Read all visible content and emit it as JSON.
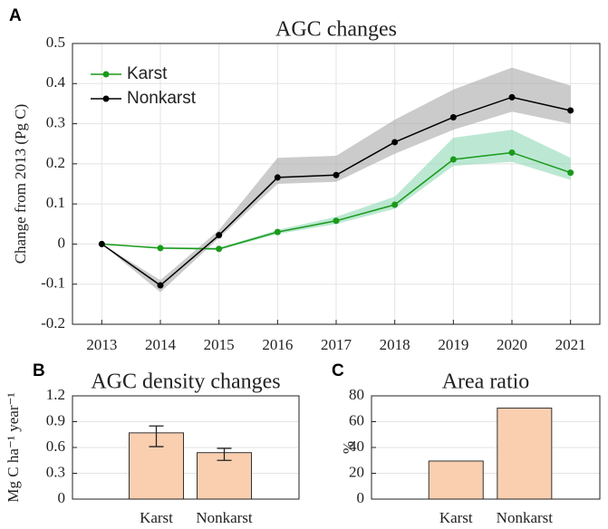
{
  "chart_data": [
    {
      "type": "line",
      "panel_label": "A",
      "title": "AGC changes",
      "ylabel": "Change from 2013 (Pg C)",
      "x": [
        2013,
        2014,
        2015,
        2016,
        2017,
        2018,
        2019,
        2020,
        2021
      ],
      "xlim": [
        2012.5,
        2021.5
      ],
      "xticks": [
        2013,
        2014,
        2015,
        2016,
        2017,
        2018,
        2019,
        2020,
        2021
      ],
      "ylim": [
        -0.2,
        0.5
      ],
      "yticks": [
        -0.2,
        -0.1,
        0,
        0.1,
        0.2,
        0.3,
        0.4,
        0.5
      ],
      "grid": true,
      "legend": "northwest",
      "series": [
        {
          "name": "Karst",
          "color": "#1a9a1a",
          "band_color": "#8fd9b6",
          "values": [
            0,
            -0.01,
            -0.012,
            0.03,
            0.058,
            0.098,
            0.211,
            0.228,
            0.178
          ],
          "lower": [
            0,
            -0.012,
            -0.015,
            0.025,
            0.05,
            0.088,
            0.195,
            0.205,
            0.16
          ],
          "upper": [
            0,
            -0.008,
            -0.009,
            0.035,
            0.068,
            0.118,
            0.265,
            0.285,
            0.215
          ]
        },
        {
          "name": "Nonkarst",
          "color": "#000000",
          "band_color": "#a8a8a8",
          "values": [
            0,
            -0.103,
            0.022,
            0.166,
            0.172,
            0.254,
            0.316,
            0.366,
            0.333
          ],
          "lower": [
            0,
            -0.12,
            0.015,
            0.15,
            0.155,
            0.225,
            0.285,
            0.33,
            0.3
          ],
          "upper": [
            0,
            -0.09,
            0.035,
            0.215,
            0.22,
            0.31,
            0.385,
            0.44,
            0.395
          ]
        }
      ]
    },
    {
      "type": "bar",
      "panel_label": "B",
      "title": "AGC density changes",
      "ylabel": "Mg C ha⁻¹ year⁻¹",
      "categories": [
        "Karst",
        "Nonkarst"
      ],
      "values": [
        0.77,
        0.54
      ],
      "lower": [
        0.61,
        0.45
      ],
      "upper": [
        0.85,
        0.59
      ],
      "color": "#f9cfb0",
      "ylim": [
        0,
        1.2
      ],
      "yticks": [
        0,
        0.3,
        0.6,
        0.9,
        1.2
      ],
      "grid": true
    },
    {
      "type": "bar",
      "panel_label": "C",
      "title": "Area ratio",
      "ylabel": "%",
      "categories": [
        "Karst",
        "Nonkarst"
      ],
      "values": [
        29.5,
        70.5
      ],
      "color": "#f9cfb0",
      "ylim": [
        0,
        80
      ],
      "yticks": [
        0,
        20,
        40,
        60,
        80
      ],
      "grid": true
    }
  ]
}
